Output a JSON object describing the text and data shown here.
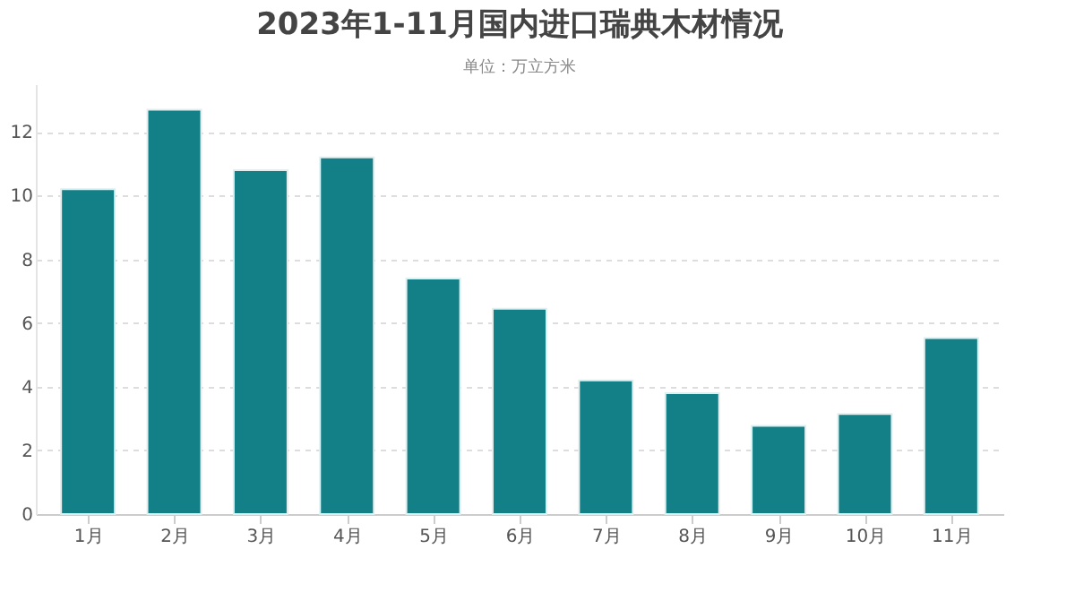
{
  "chart_data": {
    "type": "bar",
    "title": "2023年1-11月国内进口瑞典木材情况",
    "subtitle": "单位：万立方米",
    "categories": [
      "1月",
      "2月",
      "3月",
      "4月",
      "5月",
      "6月",
      "7月",
      "8月",
      "9月",
      "10月",
      "11月"
    ],
    "values": [
      10.2,
      12.7,
      10.8,
      11.2,
      7.4,
      6.45,
      4.2,
      3.8,
      2.77,
      3.14,
      5.53
    ],
    "color": "#137f87",
    "ylim": [
      0,
      13.5
    ],
    "yticks": [
      0,
      2,
      4,
      6,
      8,
      10,
      12
    ],
    "grid": "y"
  }
}
